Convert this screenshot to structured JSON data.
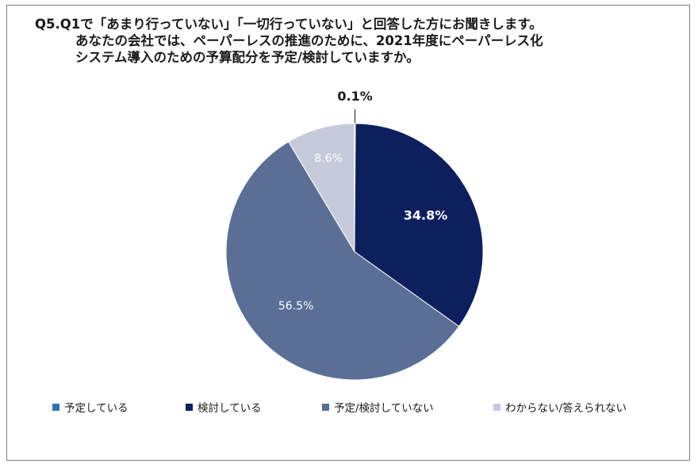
{
  "title": {
    "line1": "Q5.Q1で「あまり行っていない」「一切行っていない」と回答した方にお聞きします。",
    "line2": "あなたの会社では、ペーパーレスの推進のために、2021年度にペーパーレス化",
    "line3": "システム導入のための予算配分を予定/検討していますか。"
  },
  "chart_data": {
    "type": "pie",
    "title": "Q5.Q1で「あまり行っていない」「一切行っていない」と回答した方にお聞きします。あなたの会社では、ペーパーレスの推進のために、2021年度にペーパーレス化システム導入のための予算配分を予定/検討していますか。",
    "categories": [
      "予定している",
      "検討している",
      "予定/検討していない",
      "わからない/答えられない"
    ],
    "values": [
      0.1,
      34.8,
      56.5,
      8.6
    ],
    "labels": [
      "0.1%",
      "34.8%",
      "56.5%",
      "8.6%"
    ],
    "colors": [
      "#2e75b6",
      "#0d1f5c",
      "#5a6e96",
      "#c5cbda"
    ],
    "label_colors": [
      "#1a1a1a",
      "#ffffff",
      "#ffffff",
      "#ffffff"
    ],
    "start_angle_deg": 0,
    "direction": "clockwise",
    "legend_position": "bottom"
  }
}
